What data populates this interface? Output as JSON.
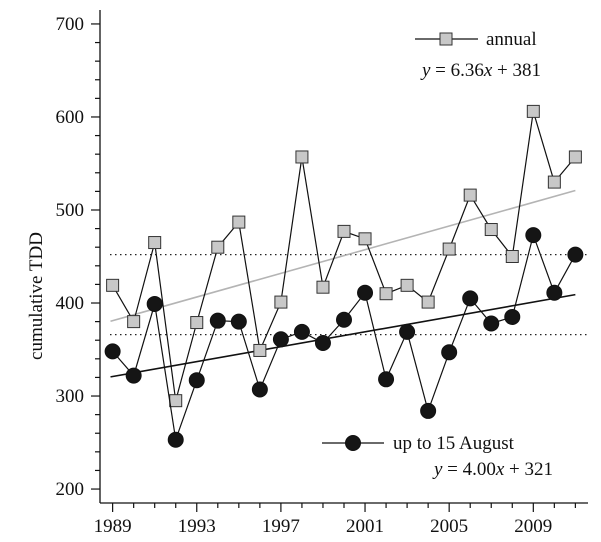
{
  "chart_data": {
    "type": "line",
    "title": "",
    "xlabel": "",
    "ylabel": "cumulative TDD",
    "xlim": [
      1988.4,
      2011.6
    ],
    "ylim": [
      185,
      715
    ],
    "x_ticks": [
      1989,
      1993,
      1997,
      2001,
      2005,
      2009
    ],
    "y_ticks": [
      200,
      300,
      400,
      500,
      600,
      700
    ],
    "grid": false,
    "legend_position": "inside",
    "x": [
      1989,
      1990,
      1991,
      1992,
      1993,
      1994,
      1995,
      1996,
      1997,
      1998,
      1999,
      2000,
      2001,
      2002,
      2003,
      2004,
      2005,
      2006,
      2007,
      2008,
      2009,
      2010,
      2011
    ],
    "series": [
      {
        "name": "annual",
        "equation": "y = 6.36x + 381",
        "marker": "square",
        "color": "#c8c8c8",
        "values": [
          419,
          380,
          465,
          295,
          379,
          460,
          487,
          349,
          401,
          557,
          417,
          477,
          469,
          410,
          419,
          401,
          458,
          516,
          479,
          450,
          606,
          530,
          557
        ]
      },
      {
        "name": "up to 15 August",
        "equation": "y = 4.00x + 321",
        "marker": "circle",
        "color": "#151515",
        "values": [
          348,
          322,
          399,
          253,
          317,
          381,
          380,
          307,
          361,
          369,
          357,
          382,
          411,
          318,
          369,
          284,
          347,
          405,
          378,
          385,
          473,
          411,
          452
        ]
      }
    ],
    "trendlines": [
      {
        "series": "annual",
        "slope": 6.36,
        "intercept": 381,
        "color": "#b4b4b4"
      },
      {
        "series": "up to 15 August",
        "slope": 4.0,
        "intercept": 321,
        "color": "#111111"
      }
    ],
    "reference_lines": [
      452,
      366
    ]
  }
}
